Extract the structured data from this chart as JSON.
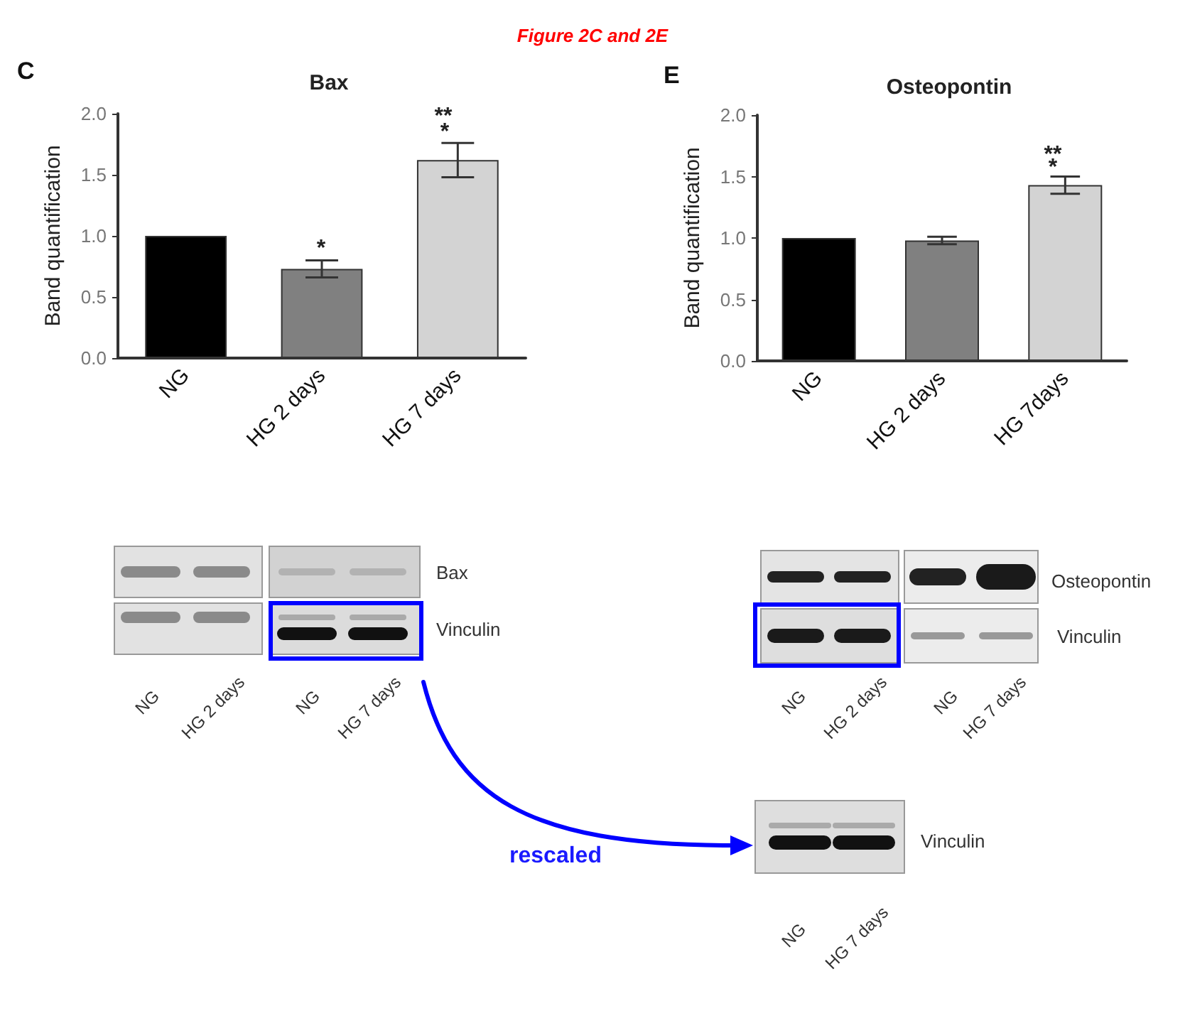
{
  "chart_data": [
    {
      "type": "bar",
      "title": "Bax",
      "ylabel": "Band quantification",
      "categories": [
        "NG",
        "HG 2 days",
        "HG 7 days"
      ],
      "values": [
        1.0,
        0.73,
        1.62
      ],
      "errors": [
        null,
        0.07,
        0.14
      ],
      "colors": [
        "#000000",
        "#808080",
        "#d3d3d3"
      ],
      "ylim": [
        0,
        2
      ],
      "yticks": [
        {
          "value": 0,
          "label": "0.0"
        },
        {
          "value": 0.5,
          "label": "0.5"
        },
        {
          "value": 1,
          "label": "1.0"
        },
        {
          "value": 1.5,
          "label": "1.5"
        },
        {
          "value": 2,
          "label": "2.0"
        }
      ],
      "grid": false,
      "annotations": [
        "Figure 2C and 2E",
        "C",
        "Bax",
        "Vinculin",
        "NG",
        "HG 2 days",
        "NG",
        "HG 7 days",
        "rescaled",
        "*",
        "**",
        "*"
      ]
    },
    {
      "type": "bar",
      "title": "Osteopontin",
      "ylabel": "Band quantification",
      "categories": [
        "NG",
        "HG 2 days",
        "HG 7days"
      ],
      "values": [
        1.0,
        0.98,
        1.43
      ],
      "errors": [
        null,
        0.03,
        0.07
      ],
      "colors": [
        "#000000",
        "#808080",
        "#d3d3d3"
      ],
      "ylim": [
        0,
        2
      ],
      "yticks": [
        {
          "value": 0,
          "label": "0.0"
        },
        {
          "value": 0.5,
          "label": "0.5"
        },
        {
          "value": 1,
          "label": "1.0"
        },
        {
          "value": 1.5,
          "label": "1.5"
        },
        {
          "value": 2,
          "label": "2.0"
        }
      ],
      "grid": false,
      "annotations": [
        "E",
        "Osteopontin",
        "Vinculin",
        "NG",
        "HG 2 days",
        "NG",
        "HG 7 days",
        "Vinculin",
        "NG",
        "HG 7 days",
        "**",
        "*"
      ]
    }
  ]
}
